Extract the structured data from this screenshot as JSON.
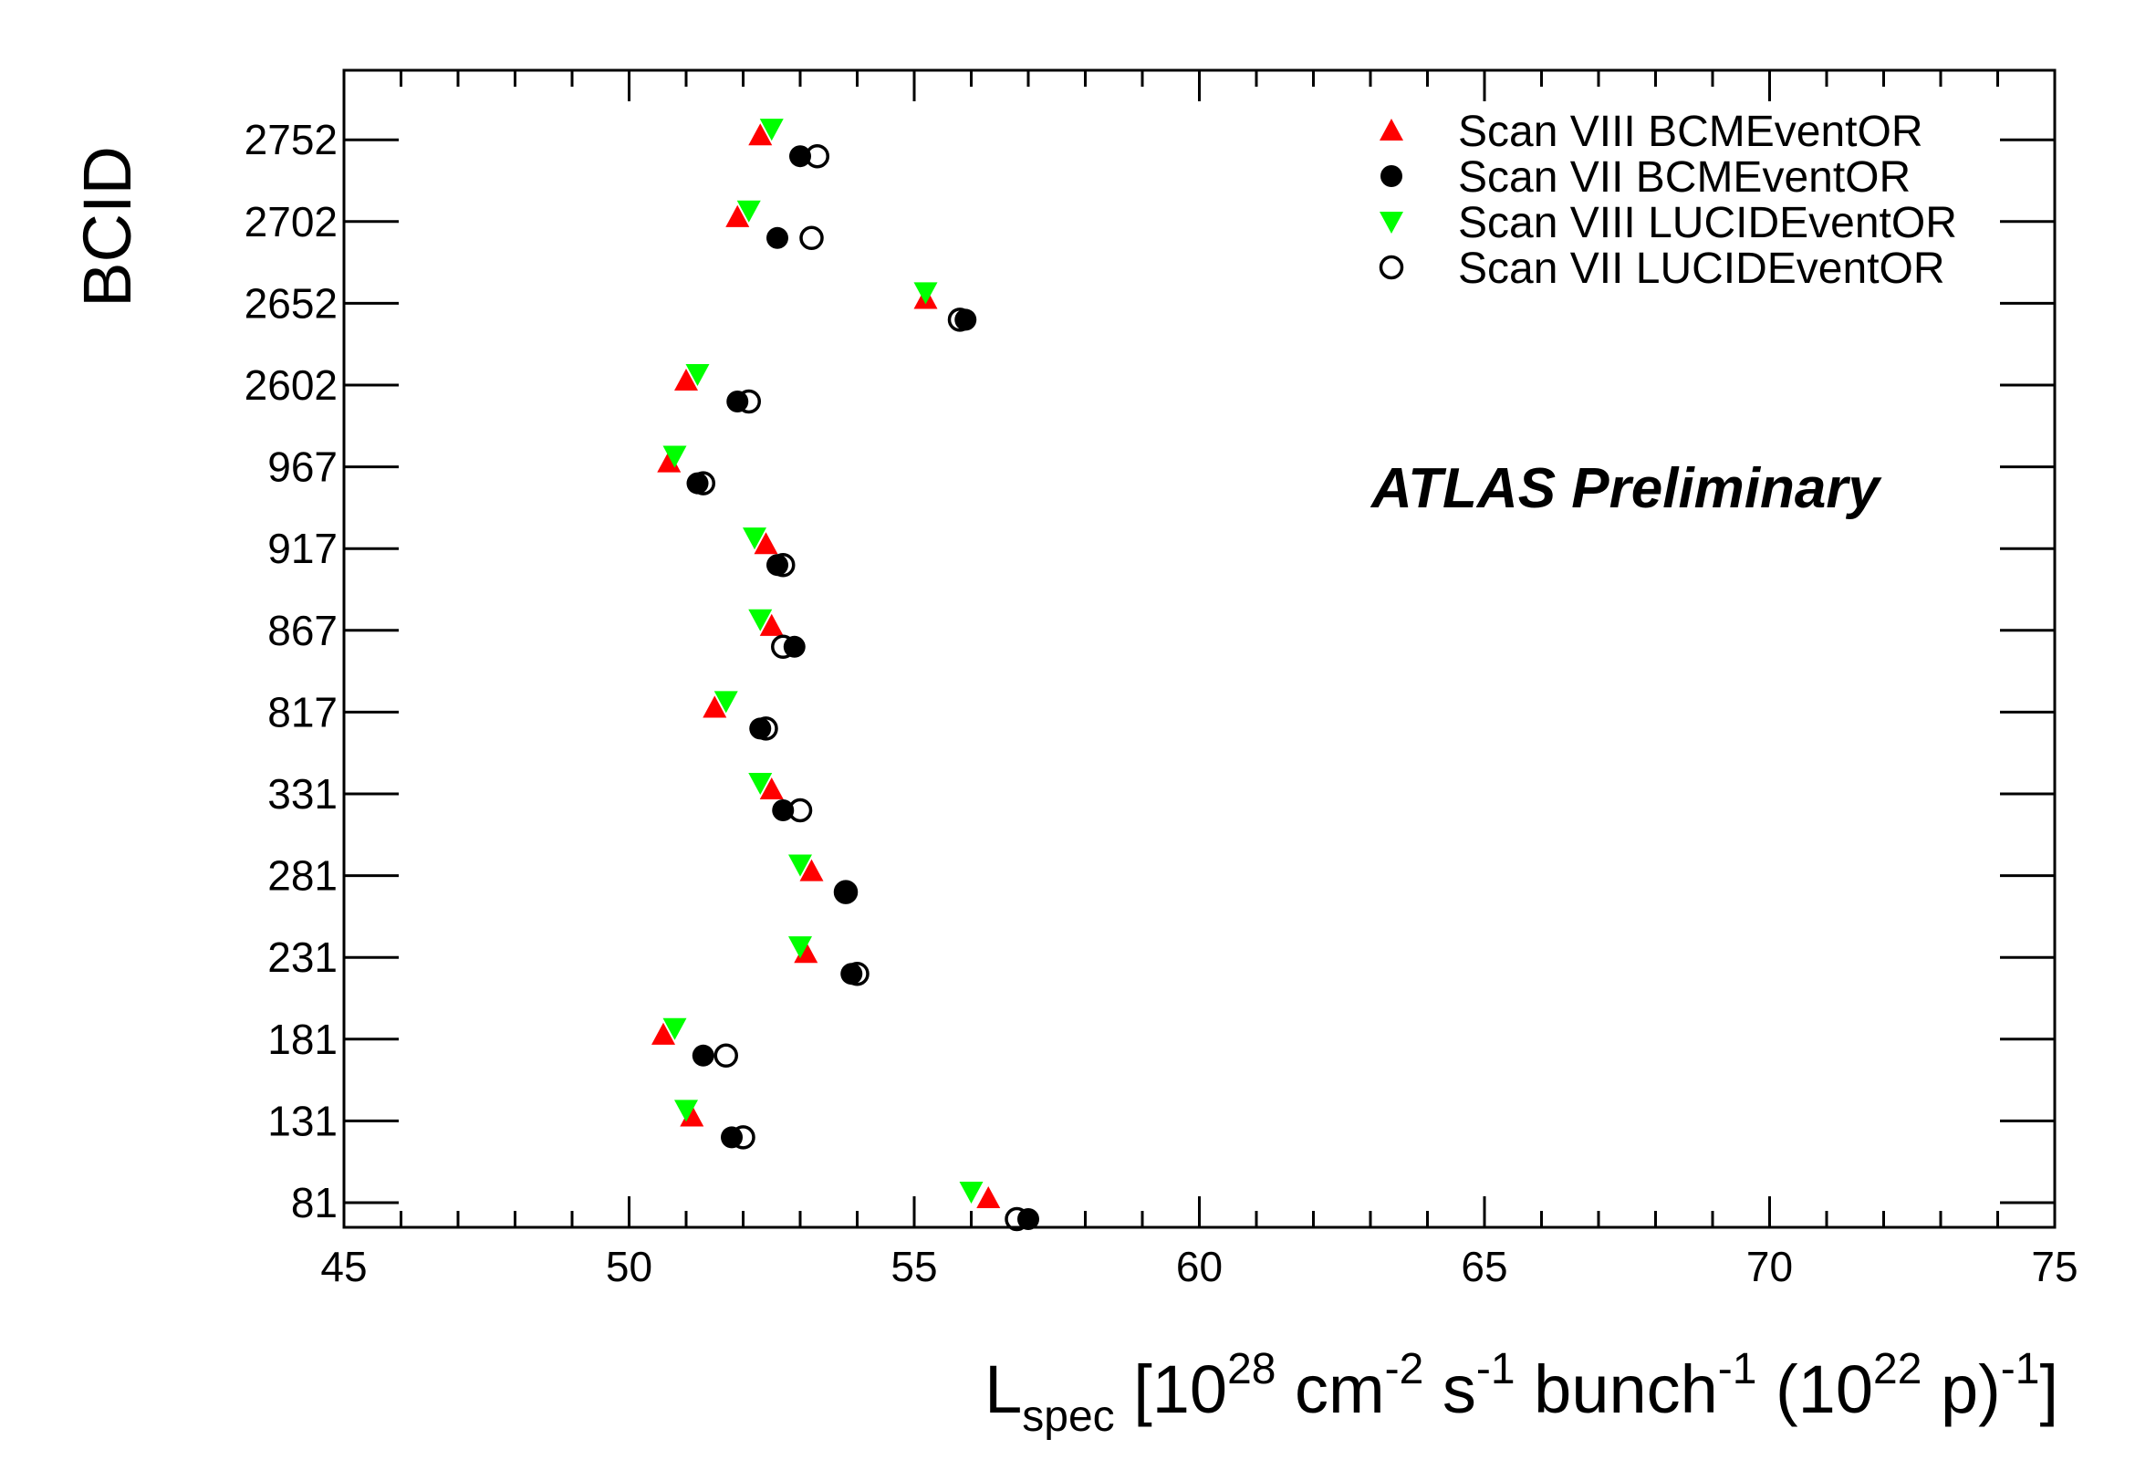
{
  "chart_data": {
    "type": "scatter",
    "orientation": "horizontal",
    "xlabel": "L_spec [10^28 cm^-2 s^-1 bunch^-1 (10^22 p)^-1]",
    "xlabel_parts": {
      "main": "L",
      "sub": "spec",
      "p1": " [10",
      "sup1": "28",
      "p2": " cm",
      "sup2": "-2",
      "p3": " s",
      "sup3": "-1",
      "p4": " bunch",
      "sup4": "-1",
      "p5": " (10",
      "sup5": "22",
      "p6": " p)",
      "sup6": "-1",
      "p7": "]"
    },
    "ylabel": "BCID",
    "annotation": "ATLAS Preliminary",
    "xlim": [
      45,
      75
    ],
    "x_ticks": [
      45,
      50,
      55,
      60,
      65,
      70,
      75
    ],
    "categories": [
      "81",
      "131",
      "181",
      "231",
      "281",
      "331",
      "817",
      "867",
      "917",
      "967",
      "2602",
      "2652",
      "2702",
      "2752"
    ],
    "legend_position": "top-right",
    "grid": false,
    "series": [
      {
        "name": "Scan VIII BCMEventOR",
        "marker": "triangle-up",
        "color": "#ff0000",
        "values": [
          56.3,
          51.1,
          50.6,
          53.1,
          53.2,
          52.5,
          51.5,
          52.5,
          52.4,
          50.7,
          51.0,
          55.2,
          51.9,
          52.3
        ]
      },
      {
        "name": "Scan VII  BCMEventOR",
        "marker": "circle-filled",
        "color": "#000000",
        "values": [
          57.0,
          51.8,
          51.3,
          53.9,
          53.8,
          52.7,
          52.3,
          52.9,
          52.6,
          51.2,
          51.9,
          55.9,
          52.6,
          53.0
        ]
      },
      {
        "name": "Scan VIII LUCIDEventOR",
        "marker": "triangle-down",
        "color": "#00ff00",
        "values": [
          56.0,
          51.0,
          50.8,
          53.0,
          53.0,
          52.3,
          51.7,
          52.3,
          52.2,
          50.8,
          51.2,
          55.2,
          52.1,
          52.5
        ]
      },
      {
        "name": "Scan VII  LUCIDEventOR",
        "marker": "circle-open",
        "color": "#000000",
        "values": [
          56.8,
          52.0,
          51.7,
          54.0,
          53.8,
          53.0,
          52.4,
          52.7,
          52.7,
          51.3,
          52.1,
          55.8,
          53.2,
          53.3
        ]
      }
    ]
  }
}
